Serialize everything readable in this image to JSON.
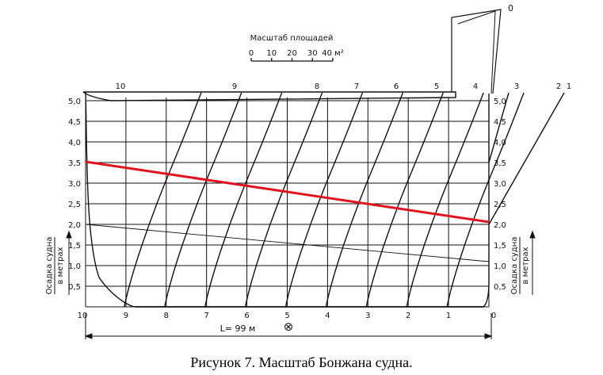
{
  "scale": {
    "title": "Масштаб площадей",
    "ticks": [
      "0",
      "10",
      "20",
      "30",
      "40 м²"
    ]
  },
  "y_axis": {
    "ticks": [
      "0,5",
      "1,0",
      "1,5",
      "2,0",
      "2,5",
      "3,0",
      "3,5",
      "4,0",
      "4,5",
      "5,0"
    ],
    "title_line1": "Осадка судна",
    "title_line2": "в метрах"
  },
  "stations": [
    "10",
    "9",
    "8",
    "7",
    "6",
    "5",
    "4",
    "3",
    "2",
    "1",
    "0"
  ],
  "top_numbers": [
    "10",
    "9",
    "8",
    "7",
    "6",
    "5",
    "4",
    "3",
    "2",
    "1"
  ],
  "rudder_label": "0",
  "length_label": "L= 99 м",
  "midship_symbol": "⊗",
  "caption": "Рисунок 7. Масштаб Бонжана судна.",
  "colors": {
    "ink": "#111111",
    "draft_line": "#e0141e"
  }
}
